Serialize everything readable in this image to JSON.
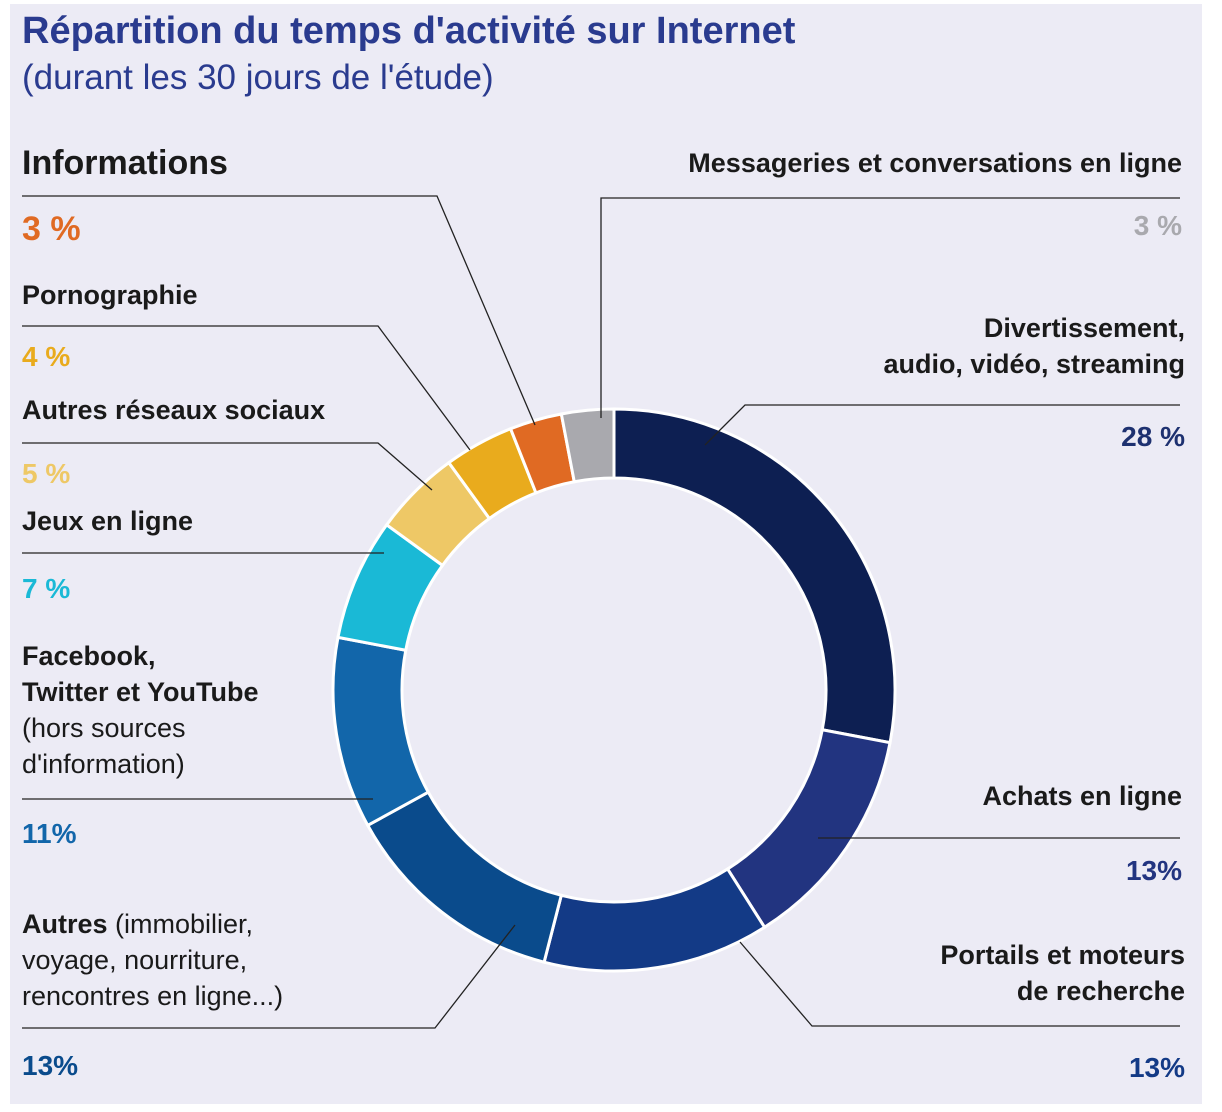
{
  "header": {
    "title": "Répartition du temps d'activité sur Internet",
    "subtitle": "(durant les 30 jours de l'étude)"
  },
  "chart_data": {
    "type": "pie",
    "style": "donut",
    "title": "Répartition du temps d'activité sur Internet",
    "subtitle": "(durant les 30 jours de l'étude)",
    "unit": "%",
    "slices": [
      {
        "label": "Divertissement, audio, vidéo, streaming",
        "value": 28,
        "pct_label": "28 %",
        "color": "#0d1f52"
      },
      {
        "label": "Achats en ligne",
        "value": 13,
        "pct_label": "13%",
        "color": "#223480"
      },
      {
        "label": "Portails et moteurs de recherche",
        "value": 13,
        "pct_label": "13%",
        "color": "#133a86"
      },
      {
        "label": "Autres (immobilier, voyage, nourriture, rencontres en ligne...)",
        "value": 13,
        "pct_label": "13%",
        "color": "#0a4b8c"
      },
      {
        "label": "Facebook, Twitter et YouTube (hors sources d'information)",
        "value": 11,
        "pct_label": "11%",
        "color": "#1266aa"
      },
      {
        "label": "Jeux en ligne",
        "value": 7,
        "pct_label": "7 %",
        "color": "#1ab9d6"
      },
      {
        "label": "Autres réseaux sociaux",
        "value": 5,
        "pct_label": "5 %",
        "color": "#eec866"
      },
      {
        "label": "Pornographie",
        "value": 4,
        "pct_label": "4 %",
        "color": "#e9ab1d"
      },
      {
        "label": "Informations",
        "value": 3,
        "pct_label": "3 %",
        "color": "#e06a23"
      },
      {
        "label": "Messageries et conversations en ligne",
        "value": 3,
        "pct_label": "3 %",
        "color": "#a9a9ae"
      }
    ],
    "legend_placement": "around-chart-with-leader-lines"
  },
  "labels": {
    "divertissement": {
      "line1": "Divertissement,",
      "line2": "audio, vidéo, streaming"
    },
    "achats": {
      "line1": "Achats en ligne"
    },
    "portails": {
      "line1": "Portails et moteurs",
      "line2": "de recherche"
    },
    "autres": {
      "bold": "Autres",
      "rest1": " (immobilier,",
      "line2": "voyage, nourriture,",
      "line3": "rencontres en ligne...)"
    },
    "facebook": {
      "line1": "Facebook,",
      "line2": "Twitter et YouTube",
      "line3": "(hors sources",
      "line4": "d'information)"
    },
    "jeux": {
      "line1": "Jeux en ligne"
    },
    "reseaux": {
      "line1": "Autres réseaux sociaux"
    },
    "porno": {
      "line1": "Pornographie"
    },
    "informations": {
      "line1": "Informations"
    },
    "messageries": {
      "line1": "Messageries et conversations en ligne"
    }
  }
}
